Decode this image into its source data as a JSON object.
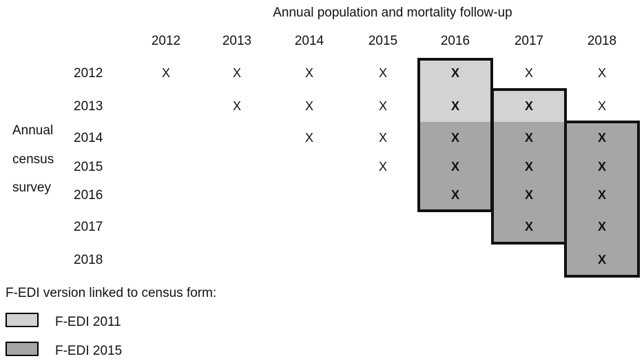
{
  "title": "Annual population and mortality follow-up",
  "follow_up_years": [
    "2012",
    "2013",
    "2014",
    "2015",
    "2016",
    "2017",
    "2018"
  ],
  "census_years": [
    "2012",
    "2013",
    "2014",
    "2015",
    "2016",
    "2017",
    "2018"
  ],
  "row_axis_label": [
    "Annual",
    "census",
    "survey"
  ],
  "cell_marker": "X",
  "linked_cells": [
    {
      "census": "2012",
      "follow_up": [
        "2012",
        "2013",
        "2014",
        "2015",
        "2016",
        "2017",
        "2018"
      ]
    },
    {
      "census": "2013",
      "follow_up": [
        "2013",
        "2014",
        "2015",
        "2016",
        "2017",
        "2018"
      ]
    },
    {
      "census": "2014",
      "follow_up": [
        "2014",
        "2015",
        "2016",
        "2017",
        "2018"
      ]
    },
    {
      "census": "2015",
      "follow_up": [
        "2015",
        "2016",
        "2017",
        "2018"
      ]
    },
    {
      "census": "2016",
      "follow_up": [
        "2016",
        "2017",
        "2018"
      ]
    },
    {
      "census": "2017",
      "follow_up": [
        "2017",
        "2018"
      ]
    },
    {
      "census": "2018",
      "follow_up": [
        "2018"
      ]
    }
  ],
  "highlighted_groups": [
    {
      "follow_up": "2016",
      "census_from": "2012",
      "census_to": "2016"
    },
    {
      "follow_up": "2017",
      "census_from": "2013",
      "census_to": "2017"
    },
    {
      "follow_up": "2018",
      "census_from": "2014",
      "census_to": "2018"
    }
  ],
  "fedi_versions": [
    {
      "follow_up": "2016",
      "census": "2012",
      "version": "F-EDI 2011"
    },
    {
      "follow_up": "2016",
      "census": "2013",
      "version": "F-EDI 2011"
    },
    {
      "follow_up": "2016",
      "census": "2014",
      "version": "F-EDI 2015"
    },
    {
      "follow_up": "2016",
      "census": "2015",
      "version": "F-EDI 2015"
    },
    {
      "follow_up": "2016",
      "census": "2016",
      "version": "F-EDI 2015"
    },
    {
      "follow_up": "2017",
      "census": "2013",
      "version": "F-EDI 2011"
    },
    {
      "follow_up": "2017",
      "census": "2014",
      "version": "F-EDI 2015"
    },
    {
      "follow_up": "2017",
      "census": "2015",
      "version": "F-EDI 2015"
    },
    {
      "follow_up": "2017",
      "census": "2016",
      "version": "F-EDI 2015"
    },
    {
      "follow_up": "2017",
      "census": "2017",
      "version": "F-EDI 2015"
    },
    {
      "follow_up": "2018",
      "census": "2014",
      "version": "F-EDI 2015"
    },
    {
      "follow_up": "2018",
      "census": "2015",
      "version": "F-EDI 2015"
    },
    {
      "follow_up": "2018",
      "census": "2016",
      "version": "F-EDI 2015"
    },
    {
      "follow_up": "2018",
      "census": "2017",
      "version": "F-EDI 2015"
    },
    {
      "follow_up": "2018",
      "census": "2018",
      "version": "F-EDI 2015"
    }
  ],
  "legend": {
    "title": "F-EDI version linked to census form:",
    "items": [
      {
        "label": "F-EDI 2011",
        "color": "#d3d3d3"
      },
      {
        "label": "F-EDI 2015",
        "color": "#a6a6a6"
      }
    ]
  }
}
